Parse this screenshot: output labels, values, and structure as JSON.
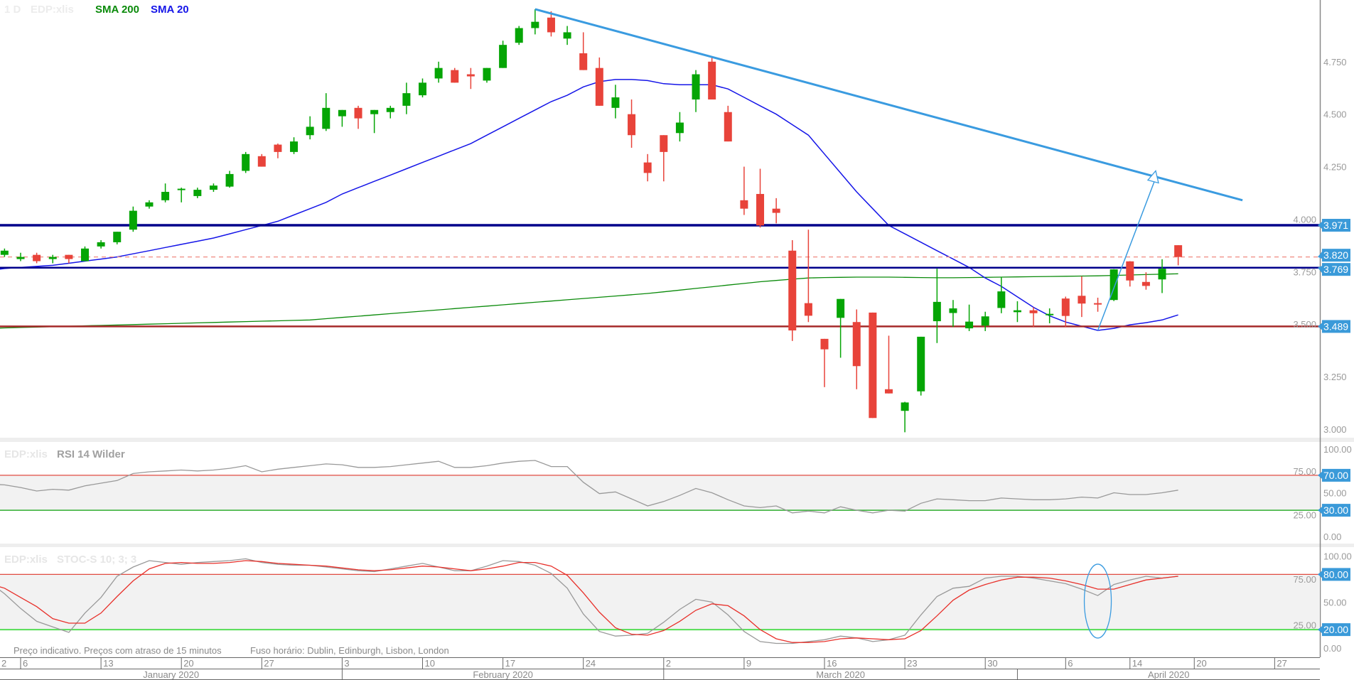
{
  "header": {
    "interval": "1 D",
    "symbol": "EDP:xlis",
    "sma200_label": "SMA 200",
    "sma20_label": "SMA 20"
  },
  "rsi_panel": {
    "symbol": "EDP:xlis",
    "title": "RSI 14 Wilder"
  },
  "stoch_panel": {
    "symbol": "EDP:xlis",
    "title": "STOC-S 10; 3; 3"
  },
  "footnote": {
    "delay": "Preço indicativo. Preços com atraso de 15 minutos",
    "timezone": "Fuso horário: Dublin, Edinburgh, Lisbon, London"
  },
  "colors": {
    "up": "#05a505",
    "down": "#e8433a",
    "sma200": "#0a8a0a",
    "sma20": "#1515e8",
    "trend": "#3a9be0",
    "badge": "#3a9ad9",
    "support_navy": "#00008b",
    "support_red": "#a52a2a",
    "last_price": "#f08a80"
  },
  "chart_data": {
    "type": "candlestick",
    "title": "EDP:xlis 1 D",
    "dates": [
      "2020-01-02",
      "2020-01-03",
      "2020-01-06",
      "2020-01-07",
      "2020-01-08",
      "2020-01-09",
      "2020-01-10",
      "2020-01-13",
      "2020-01-14",
      "2020-01-15",
      "2020-01-16",
      "2020-01-17",
      "2020-01-20",
      "2020-01-21",
      "2020-01-22",
      "2020-01-23",
      "2020-01-24",
      "2020-01-27",
      "2020-01-28",
      "2020-01-29",
      "2020-01-30",
      "2020-01-31",
      "2020-02-03",
      "2020-02-04",
      "2020-02-05",
      "2020-02-06",
      "2020-02-07",
      "2020-02-10",
      "2020-02-11",
      "2020-02-12",
      "2020-02-13",
      "2020-02-14",
      "2020-02-17",
      "2020-02-18",
      "2020-02-19",
      "2020-02-20",
      "2020-02-21",
      "2020-02-24",
      "2020-02-25",
      "2020-02-26",
      "2020-02-27",
      "2020-02-28",
      "2020-03-02",
      "2020-03-03",
      "2020-03-04",
      "2020-03-05",
      "2020-03-06",
      "2020-03-09",
      "2020-03-10",
      "2020-03-11",
      "2020-03-12",
      "2020-03-13",
      "2020-03-16",
      "2020-03-17",
      "2020-03-18",
      "2020-03-19",
      "2020-03-20",
      "2020-03-23",
      "2020-03-24",
      "2020-03-25",
      "2020-03-26",
      "2020-03-27",
      "2020-03-30",
      "2020-03-31",
      "2020-04-01",
      "2020-04-02",
      "2020-04-03",
      "2020-04-06",
      "2020-04-07",
      "2020-04-08",
      "2020-04-09",
      "2020-04-14",
      "2020-04-15",
      "2020-04-16",
      "2020-04-17"
    ],
    "ohlc": [
      [
        3.8,
        3.84,
        3.79,
        3.83
      ],
      [
        3.83,
        3.86,
        3.82,
        3.85
      ],
      [
        3.81,
        3.84,
        3.8,
        3.82
      ],
      [
        3.83,
        3.84,
        3.79,
        3.8
      ],
      [
        3.81,
        3.83,
        3.79,
        3.82
      ],
      [
        3.83,
        3.83,
        3.79,
        3.81
      ],
      [
        3.8,
        3.87,
        3.8,
        3.86
      ],
      [
        3.87,
        3.9,
        3.86,
        3.89
      ],
      [
        3.89,
        3.94,
        3.88,
        3.94
      ],
      [
        3.95,
        4.06,
        3.94,
        4.04
      ],
      [
        4.06,
        4.09,
        4.05,
        4.08
      ],
      [
        4.09,
        4.17,
        4.08,
        4.13
      ],
      [
        4.14,
        4.15,
        4.08,
        4.145
      ],
      [
        4.11,
        4.15,
        4.1,
        4.14
      ],
      [
        4.14,
        4.17,
        4.13,
        4.16
      ],
      [
        4.155,
        4.23,
        4.15,
        4.215
      ],
      [
        4.23,
        4.32,
        4.22,
        4.31
      ],
      [
        4.3,
        4.31,
        4.25,
        4.25
      ],
      [
        4.355,
        4.36,
        4.29,
        4.32
      ],
      [
        4.32,
        4.39,
        4.31,
        4.37
      ],
      [
        4.4,
        4.49,
        4.38,
        4.44
      ],
      [
        4.43,
        4.6,
        4.42,
        4.53
      ],
      [
        4.49,
        4.52,
        4.44,
        4.52
      ],
      [
        4.53,
        4.54,
        4.43,
        4.48
      ],
      [
        4.5,
        4.52,
        4.41,
        4.52
      ],
      [
        4.51,
        4.54,
        4.48,
        4.53
      ],
      [
        4.54,
        4.65,
        4.5,
        4.6
      ],
      [
        4.59,
        4.67,
        4.58,
        4.65
      ],
      [
        4.67,
        4.75,
        4.65,
        4.72
      ],
      [
        4.71,
        4.72,
        4.65,
        4.65
      ],
      [
        4.69,
        4.72,
        4.62,
        4.68
      ],
      [
        4.66,
        4.72,
        4.65,
        4.72
      ],
      [
        4.72,
        4.85,
        4.72,
        4.83
      ],
      [
        4.84,
        4.92,
        4.83,
        4.91
      ],
      [
        4.91,
        5.0,
        4.88,
        4.94
      ],
      [
        4.96,
        4.99,
        4.87,
        4.89
      ],
      [
        4.86,
        4.92,
        4.83,
        4.89
      ],
      [
        4.79,
        4.89,
        4.71,
        4.71
      ],
      [
        4.72,
        4.77,
        4.54,
        4.54
      ],
      [
        4.53,
        4.64,
        4.48,
        4.58
      ],
      [
        4.5,
        4.57,
        4.34,
        4.4
      ],
      [
        4.27,
        4.31,
        4.18,
        4.22
      ],
      [
        4.4,
        4.4,
        4.18,
        4.32
      ],
      [
        4.41,
        4.51,
        4.37,
        4.46
      ],
      [
        4.57,
        4.71,
        4.51,
        4.69
      ],
      [
        4.75,
        4.77,
        4.57,
        4.57
      ],
      [
        4.51,
        4.54,
        4.37,
        4.37
      ],
      [
        4.09,
        4.25,
        4.02,
        4.05
      ],
      [
        4.12,
        4.24,
        3.96,
        3.97
      ],
      [
        4.05,
        4.1,
        3.98,
        4.03
      ],
      [
        3.85,
        3.9,
        3.42,
        3.47
      ],
      [
        3.6,
        3.95,
        3.51,
        3.54
      ],
      [
        3.43,
        3.43,
        3.2,
        3.38
      ],
      [
        3.53,
        3.62,
        3.34,
        3.62
      ],
      [
        3.51,
        3.57,
        3.19,
        3.3
      ],
      [
        3.555,
        3.555,
        3.053,
        3.053
      ],
      [
        3.19,
        3.445,
        3.17,
        3.17
      ],
      [
        3.087,
        3.13,
        2.985,
        3.127
      ],
      [
        3.18,
        3.44,
        3.16,
        3.44
      ],
      [
        3.514,
        3.764,
        3.41,
        3.606
      ],
      [
        3.553,
        3.615,
        3.487,
        3.575
      ],
      [
        3.48,
        3.593,
        3.467,
        3.512
      ],
      [
        3.493,
        3.559,
        3.467,
        3.537
      ],
      [
        3.577,
        3.724,
        3.552,
        3.656
      ],
      [
        3.557,
        3.609,
        3.51,
        3.566
      ],
      [
        3.566,
        3.58,
        3.487,
        3.552
      ],
      [
        3.546,
        3.575,
        3.504,
        3.549
      ],
      [
        3.622,
        3.631,
        3.487,
        3.539
      ],
      [
        3.635,
        3.728,
        3.534,
        3.598
      ],
      [
        3.6,
        3.626,
        3.559,
        3.597
      ],
      [
        3.615,
        3.762,
        3.61,
        3.761
      ],
      [
        3.799,
        3.8,
        3.679,
        3.708
      ],
      [
        3.701,
        3.747,
        3.664,
        3.682
      ],
      [
        3.713,
        3.809,
        3.648,
        3.764
      ],
      [
        3.876,
        3.876,
        3.78,
        3.82
      ]
    ],
    "sma20": [
      3.755,
      3.765,
      3.77,
      3.775,
      3.78,
      3.79,
      3.8,
      3.81,
      3.82,
      3.835,
      3.85,
      3.865,
      3.88,
      3.895,
      3.91,
      3.93,
      3.95,
      3.97,
      3.99,
      4.02,
      4.05,
      4.08,
      4.12,
      4.15,
      4.18,
      4.21,
      4.24,
      4.27,
      4.3,
      4.33,
      4.36,
      4.4,
      4.44,
      4.48,
      4.52,
      4.56,
      4.59,
      4.63,
      4.655,
      4.665,
      4.665,
      4.66,
      4.645,
      4.64,
      4.64,
      4.64,
      4.62,
      4.58,
      4.54,
      4.5,
      4.45,
      4.4,
      4.31,
      4.22,
      4.13,
      4.05,
      3.97,
      3.93,
      3.89,
      3.85,
      3.81,
      3.77,
      3.72,
      3.68,
      3.63,
      3.58,
      3.54,
      3.51,
      3.49,
      3.47,
      3.48,
      3.497,
      3.507,
      3.52,
      3.544
    ],
    "sma200": [
      3.48,
      3.482,
      3.484,
      3.486,
      3.488,
      3.49,
      3.492,
      3.494,
      3.496,
      3.498,
      3.5,
      3.502,
      3.504,
      3.506,
      3.508,
      3.51,
      3.512,
      3.514,
      3.516,
      3.518,
      3.52,
      3.526,
      3.532,
      3.538,
      3.544,
      3.55,
      3.556,
      3.562,
      3.568,
      3.574,
      3.58,
      3.586,
      3.592,
      3.598,
      3.604,
      3.61,
      3.616,
      3.622,
      3.628,
      3.634,
      3.64,
      3.646,
      3.654,
      3.662,
      3.67,
      3.678,
      3.686,
      3.694,
      3.702,
      3.708,
      3.714,
      3.72,
      3.722,
      3.723,
      3.724,
      3.724,
      3.724,
      3.723,
      3.722,
      3.721,
      3.721,
      3.722,
      3.723,
      3.724,
      3.725,
      3.726,
      3.727,
      3.728,
      3.729,
      3.73,
      3.732,
      3.734,
      3.736,
      3.738,
      3.74
    ],
    "price_axis": {
      "ticks": [
        "3.000",
        "3.250",
        "3.500",
        "3.750",
        "4.000",
        "4.250",
        "4.500",
        "4.750"
      ]
    },
    "horizontal_lines": [
      {
        "name": "resistance",
        "value": 3.971,
        "label": "3.971",
        "style": "navy-thick"
      },
      {
        "name": "last-price",
        "value": 3.82,
        "label": "3.820",
        "style": "red-dashed"
      },
      {
        "name": "support-upper",
        "value": 3.769,
        "label": "3.769",
        "style": "navy"
      },
      {
        "name": "support-lower",
        "value": 3.489,
        "label": "3.489",
        "style": "darkred"
      }
    ],
    "trendline": {
      "start": {
        "index": 34,
        "price": 5.0
      },
      "end": {
        "index": 78,
        "price": 4.09
      }
    },
    "arrow": {
      "start": {
        "index": 69,
        "price": 3.47
      },
      "end": {
        "index": 72.6,
        "price": 4.23
      }
    },
    "rsi": {
      "values": [
        60,
        59,
        56,
        52,
        54,
        53,
        58,
        61,
        64,
        72,
        74,
        75,
        76,
        75,
        76,
        78,
        81,
        74,
        77,
        79,
        81,
        83,
        82,
        79,
        79,
        80,
        82,
        84,
        86,
        79,
        79,
        81,
        84,
        86,
        87,
        80,
        80,
        62,
        49,
        51,
        43,
        35,
        40,
        47,
        55,
        50,
        42,
        35,
        33,
        35,
        27,
        29,
        27,
        34,
        30,
        27,
        30,
        29,
        38,
        43,
        42,
        41,
        41,
        44,
        43,
        42,
        42,
        43,
        45,
        44,
        50,
        48,
        48,
        50,
        53
      ],
      "ticks": [
        "0.00",
        "25.00",
        "50.00",
        "75.00",
        "100.00"
      ],
      "overbought": {
        "value": 70,
        "label": "70.00"
      },
      "oversold": {
        "value": 30,
        "label": "30.00"
      }
    },
    "stoch": {
      "k": [
        72,
        59,
        43,
        29,
        23,
        17,
        38,
        55,
        78,
        88,
        95,
        93,
        91,
        93,
        94,
        95,
        97,
        93,
        91,
        90,
        90,
        88,
        86,
        84,
        83,
        86,
        89,
        92,
        88,
        84,
        84,
        89,
        95,
        94,
        90,
        81,
        65,
        37,
        18,
        13,
        14,
        16,
        28,
        42,
        53,
        50,
        36,
        18,
        7,
        5,
        5,
        7,
        9,
        13,
        11,
        7,
        9,
        14,
        36,
        56,
        65,
        67,
        76,
        78,
        78,
        76,
        73,
        70,
        64,
        57,
        69,
        74,
        78,
        76,
        78
      ],
      "d": [
        70,
        65,
        55,
        45,
        32,
        27,
        27,
        38,
        56,
        73,
        86,
        92,
        93,
        92,
        92,
        93,
        95,
        94,
        92,
        91,
        90,
        89,
        87,
        85,
        84,
        85,
        87,
        89,
        88,
        86,
        84,
        86,
        89,
        93,
        93,
        89,
        79,
        60,
        39,
        22,
        15,
        14,
        19,
        29,
        41,
        48,
        46,
        35,
        20,
        10,
        6,
        6,
        7,
        10,
        11,
        10,
        9,
        10,
        19,
        35,
        52,
        63,
        69,
        74,
        77,
        77,
        76,
        73,
        69,
        64,
        64,
        69,
        74,
        76,
        78
      ],
      "ticks": [
        "0.00",
        "25.00",
        "50.00",
        "75.00",
        "100.00"
      ],
      "overbought": {
        "value": 80,
        "label": "80.00"
      },
      "oversold": {
        "value": 20,
        "label": "20.00"
      },
      "annotation": {
        "index": 69,
        "value": 51,
        "shape": "ellipse"
      }
    },
    "date_axis": {
      "days": [
        {
          "i": 0,
          "label": "2"
        },
        {
          "i": 2,
          "label": "6"
        },
        {
          "i": 7,
          "label": "13"
        },
        {
          "i": 12,
          "label": "20"
        },
        {
          "i": 17,
          "label": "27"
        },
        {
          "i": 22,
          "label": "3"
        },
        {
          "i": 27,
          "label": "10"
        },
        {
          "i": 32,
          "label": "17"
        },
        {
          "i": 37,
          "label": "24"
        },
        {
          "i": 42,
          "label": "2"
        },
        {
          "i": 47,
          "label": "9"
        },
        {
          "i": 52,
          "label": "16"
        },
        {
          "i": 57,
          "label": "23"
        },
        {
          "i": 62,
          "label": "30"
        },
        {
          "i": 67,
          "label": "6"
        },
        {
          "i": 71,
          "label": "14"
        },
        {
          "i": 75,
          "label": "20"
        },
        {
          "i": 80,
          "label": "27"
        }
      ],
      "months": [
        {
          "from": 0,
          "to": 22,
          "label": "January 2020"
        },
        {
          "from": 22,
          "to": 42,
          "label": "February 2020"
        },
        {
          "from": 42,
          "to": 64,
          "label": "March 2020"
        },
        {
          "from": 64,
          "to": 90,
          "label": "April 2020"
        }
      ]
    }
  }
}
